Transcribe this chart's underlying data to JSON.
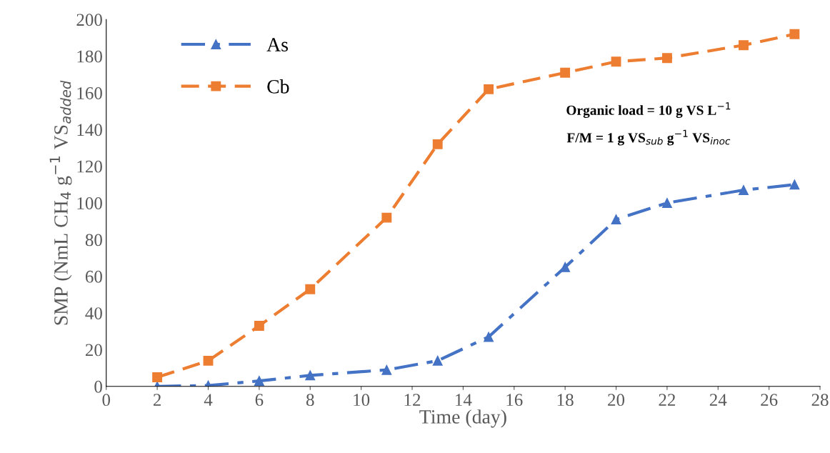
{
  "chart_data": {
    "type": "line",
    "xlabel": "Time (day)",
    "ylabel": "SMP (NmL CH$_{4}$ g$^{−1}$ VS$_{added}$",
    "x": [
      2,
      4,
      6,
      8,
      11,
      13,
      15,
      18,
      20,
      22,
      25,
      27
    ],
    "series": [
      {
        "name": "As",
        "color": "#4472c4",
        "marker": "triangle",
        "line_style": "dashdot",
        "values": [
          0,
          0.5,
          3,
          6,
          9,
          14,
          27,
          65,
          91,
          100,
          107,
          110
        ]
      },
      {
        "name": "Cb",
        "color": "#ed7d31",
        "marker": "square",
        "line_style": "dashed",
        "values": [
          5,
          14,
          33,
          53,
          92,
          132,
          162,
          171,
          177,
          179,
          186,
          192
        ]
      }
    ],
    "xlim": [
      0,
      28
    ],
    "xticks": [
      0,
      2,
      4,
      6,
      8,
      10,
      12,
      14,
      16,
      18,
      20,
      22,
      24,
      26,
      28
    ],
    "ylim": [
      0,
      200
    ],
    "yticks": [
      0,
      20,
      40,
      60,
      80,
      100,
      120,
      140,
      160,
      180,
      200
    ],
    "annotations": [
      "Organic load = 10 g VS L$^{−1}$",
      "F/M = 1 g VS$_{sub}$ g$^{−1}$ VS$_{inoc}$"
    ],
    "grid": false,
    "legend": "top left"
  }
}
